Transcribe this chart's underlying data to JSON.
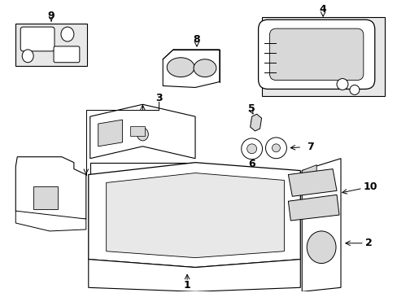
{
  "bg_color": "#ffffff",
  "line_color": "#000000",
  "fill_light": "#e8e8e8",
  "fill_mid": "#d8d8d8",
  "fill_dark": "#c8c8c8"
}
